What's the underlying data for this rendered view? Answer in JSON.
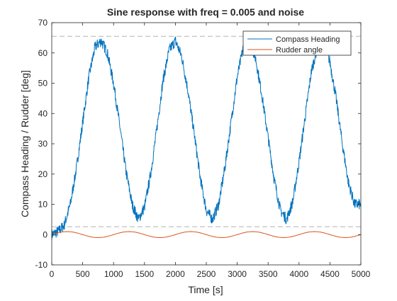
{
  "chart_data": {
    "type": "line",
    "title": "Sine response with freq = 0.005 and noise",
    "xlabel": "Time [s]",
    "ylabel": "Compass Heading / Rudder [deg]",
    "xlim": [
      0,
      5000
    ],
    "ylim": [
      -10,
      70
    ],
    "xticks": [
      0,
      500,
      1000,
      1500,
      2000,
      2500,
      3000,
      3500,
      4000,
      4500,
      5000
    ],
    "yticks": [
      -10,
      0,
      10,
      20,
      30,
      40,
      50,
      60,
      70
    ],
    "xtick_labels": [
      "0",
      "500",
      "1000",
      "1500",
      "2000",
      "2500",
      "3000",
      "3500",
      "4000",
      "4500",
      "5000"
    ],
    "ytick_labels": [
      "-10",
      "0",
      "10",
      "20",
      "30",
      "40",
      "50",
      "60",
      "70"
    ],
    "grid": false,
    "legend_position": "top-right",
    "reference_lines": [
      {
        "y": 65.5,
        "style": "dashed",
        "color": "#b3b3b3"
      },
      {
        "y": 2.6,
        "style": "dashed",
        "color": "#b3b3b3"
      }
    ],
    "series": [
      {
        "name": "Compass Heading",
        "color": "#0072BD",
        "x": [
          0,
          100,
          200,
          300,
          400,
          500,
          600,
          700,
          800,
          900,
          1000,
          1100,
          1200,
          1300,
          1400,
          1500,
          1600,
          1700,
          1800,
          1900,
          2000,
          2100,
          2200,
          2300,
          2400,
          2500,
          2600,
          2700,
          2800,
          2900,
          3000,
          3100,
          3200,
          3300,
          3400,
          3500,
          3600,
          3700,
          3800,
          3900,
          4000,
          4100,
          4200,
          4300,
          4400,
          4500,
          4600,
          4700,
          4800,
          4900,
          5000
        ],
        "y": [
          0,
          1,
          3,
          10,
          22,
          37,
          52,
          62,
          64,
          60,
          50,
          36,
          21,
          10,
          5,
          9,
          20,
          35,
          51,
          61,
          64,
          59,
          48,
          34,
          19,
          8,
          5,
          10,
          22,
          37,
          52,
          62,
          64,
          58,
          46,
          32,
          18,
          8,
          5,
          11,
          24,
          39,
          54,
          62,
          64,
          57,
          45,
          30,
          17,
          10,
          10
        ],
        "noise_amplitude": 1.8
      },
      {
        "name": "Rudder angle",
        "color": "#D95319",
        "x": [
          0,
          50,
          100,
          150,
          200,
          250,
          300,
          350,
          400,
          450,
          500,
          550,
          600,
          650,
          700,
          750,
          800,
          850,
          900,
          950,
          1000,
          1050,
          1100,
          1150,
          1200,
          1250,
          1300,
          1350,
          1400,
          1450,
          1500,
          1550,
          1600,
          1650,
          1700,
          1750,
          1800,
          1850,
          1900,
          1950,
          2000,
          2050,
          2100,
          2150,
          2200,
          2250,
          2300,
          2350,
          2400,
          2450,
          2500,
          2550,
          2600,
          2650,
          2700,
          2750,
          2800,
          2850,
          2900,
          2950,
          3000,
          3050,
          3100,
          3150,
          3200,
          3250,
          3300,
          3350,
          3400,
          3450,
          3500,
          3550,
          3600,
          3650,
          3700,
          3750,
          3800,
          3850,
          3900,
          3950,
          4000,
          4050,
          4100,
          4150,
          4200,
          4250,
          4300,
          4350,
          4400,
          4450,
          4500,
          4550,
          4600,
          4650,
          4700,
          4750,
          4800,
          4850,
          4900,
          4950,
          5000
        ],
        "y": [
          0,
          0.31,
          0.59,
          0.81,
          0.95,
          1.0,
          0.95,
          0.81,
          0.59,
          0.31,
          0,
          -0.31,
          -0.59,
          -0.81,
          -0.95,
          -1.0,
          -0.95,
          -0.81,
          -0.59,
          -0.31,
          0,
          0.31,
          0.59,
          0.81,
          0.95,
          1.0,
          0.95,
          0.81,
          0.59,
          0.31,
          0,
          -0.31,
          -0.59,
          -0.81,
          -0.95,
          -1.0,
          -0.95,
          -0.81,
          -0.59,
          -0.31,
          0,
          0.31,
          0.59,
          0.81,
          0.95,
          1.0,
          0.95,
          0.81,
          0.59,
          0.31,
          0,
          -0.31,
          -0.59,
          -0.81,
          -0.95,
          -1.0,
          -0.95,
          -0.81,
          -0.59,
          -0.31,
          0,
          0.31,
          0.59,
          0.81,
          0.95,
          1.0,
          0.95,
          0.81,
          0.59,
          0.31,
          0,
          -0.31,
          -0.59,
          -0.81,
          -0.95,
          -1.0,
          -0.95,
          -0.81,
          -0.59,
          -0.31,
          0,
          0.31,
          0.59,
          0.81,
          0.95,
          1.0,
          0.95,
          0.81,
          0.59,
          0.31,
          0,
          -0.31,
          -0.59,
          -0.81,
          -0.95,
          -1.0,
          -0.95,
          -0.81,
          -0.59,
          -0.31,
          0
        ]
      }
    ]
  }
}
